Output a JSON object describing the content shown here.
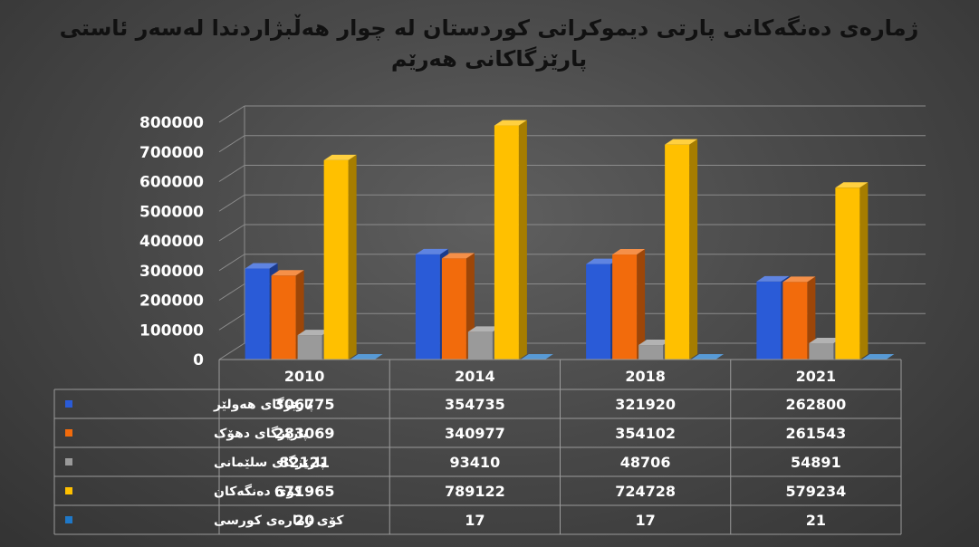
{
  "title": "ژمارەی دەنگەکانی پارتی دیموکراتی کوردستان لە چوار هەڵبژاردندا لەسەر ئاستی پارێزگاکانی هەرێم",
  "colors": {
    "series": [
      "#2a5bd7",
      "#f26b0c",
      "#9a9a9a",
      "#ffc000",
      "#1f78c8"
    ]
  },
  "chart_data": {
    "type": "bar",
    "title": "ژمارەی دەنگەکانی پارتی دیموکراتی کوردستان لە چوار هەڵبژاردندا لەسەر ئاستی پارێزگاکانی هەرێم",
    "categories": [
      "2010",
      "2014",
      "2018",
      "2021"
    ],
    "series": [
      {
        "name": "پارێزگای هەولێر",
        "values": [
          306775,
          354735,
          321920,
          262800
        ]
      },
      {
        "name": "پارێزگای دهۆک",
        "values": [
          283069,
          340977,
          354102,
          261543
        ]
      },
      {
        "name": "پارێزگای سلێمانی",
        "values": [
          82121,
          93410,
          48706,
          54891
        ]
      },
      {
        "name": "کۆی دەنگەکان",
        "values": [
          671965,
          789122,
          724728,
          579234
        ]
      },
      {
        "name": "کۆی ژمارەی کورسی",
        "values": [
          20,
          17,
          17,
          21
        ]
      }
    ],
    "ylim": [
      0,
      800000
    ],
    "yticks": [
      "0",
      "100000",
      "200000",
      "300000",
      "400000",
      "500000",
      "600000",
      "700000",
      "800000"
    ],
    "data_table": true,
    "grid": true
  }
}
